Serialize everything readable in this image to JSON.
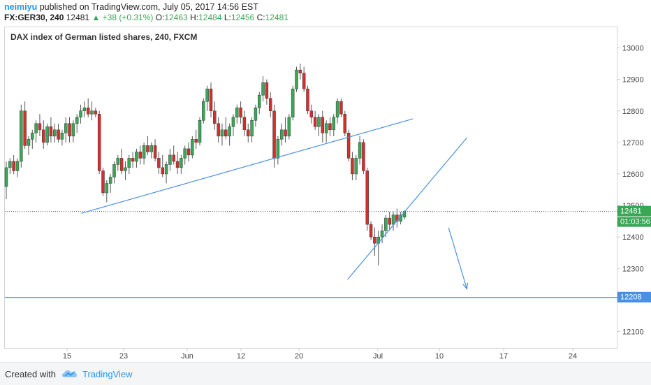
{
  "header": {
    "author": "neimiyu",
    "published_text": "published on TradingView.com, July 05, 2017 14:56 EST",
    "symbol": "FX:GER30, 240",
    "last": "12481",
    "change": "▲ +38 (+0.31%)",
    "o_label": "O:",
    "o_value": "12463",
    "h_label": "H:",
    "h_value": "12484",
    "l_label": "L:",
    "l_value": "12456",
    "c_label": "C:",
    "c_value": "12481"
  },
  "footer": {
    "created_with": "Created with",
    "brand": "TradingView"
  },
  "colors": {
    "up": "#3aa757",
    "down": "#d0312d",
    "wick": "#555555",
    "drawing": "#4a90e2",
    "price_line": "#555555",
    "accent": "#2196f3"
  },
  "chart_data": {
    "type": "candlestick",
    "title": "DAX index of German listed shares, 240, FXCM",
    "y_range": [
      12050,
      13050
    ],
    "y_ticks": [
      13000,
      12900,
      12800,
      12700,
      12600,
      12500,
      12400,
      12300,
      12100
    ],
    "x_ticks": [
      "15",
      "23",
      "Jun",
      "12",
      "20",
      "Jul",
      "10",
      "17",
      "24"
    ],
    "last_price": 12481,
    "last_price_label": "12481",
    "countdown_label": "01:03:56",
    "support_level": 12208,
    "support_label": "12208",
    "candles": [
      [
        12560,
        12640,
        12520,
        12620
      ],
      [
        12620,
        12650,
        12600,
        12640
      ],
      [
        12640,
        12660,
        12600,
        12610
      ],
      [
        12610,
        12650,
        12590,
        12640
      ],
      [
        12640,
        12820,
        12620,
        12800
      ],
      [
        12800,
        12830,
        12680,
        12690
      ],
      [
        12690,
        12720,
        12660,
        12710
      ],
      [
        12710,
        12740,
        12680,
        12730
      ],
      [
        12730,
        12770,
        12700,
        12760
      ],
      [
        12760,
        12790,
        12720,
        12740
      ],
      [
        12740,
        12770,
        12680,
        12700
      ],
      [
        12700,
        12760,
        12690,
        12750
      ],
      [
        12750,
        12780,
        12700,
        12720
      ],
      [
        12720,
        12760,
        12700,
        12740
      ],
      [
        12740,
        12760,
        12700,
        12710
      ],
      [
        12710,
        12740,
        12690,
        12730
      ],
      [
        12730,
        12780,
        12700,
        12760
      ],
      [
        12760,
        12780,
        12700,
        12720
      ],
      [
        12720,
        12770,
        12700,
        12760
      ],
      [
        12760,
        12790,
        12730,
        12780
      ],
      [
        12780,
        12820,
        12760,
        12800
      ],
      [
        12800,
        12830,
        12780,
        12810
      ],
      [
        12810,
        12840,
        12780,
        12790
      ],
      [
        12790,
        12830,
        12770,
        12800
      ],
      [
        12800,
        12810,
        12780,
        12790
      ],
      [
        12790,
        12800,
        12600,
        12610
      ],
      [
        12610,
        12620,
        12530,
        12540
      ],
      [
        12540,
        12580,
        12510,
        12570
      ],
      [
        12570,
        12600,
        12540,
        12590
      ],
      [
        12590,
        12640,
        12570,
        12630
      ],
      [
        12630,
        12660,
        12610,
        12650
      ],
      [
        12650,
        12680,
        12600,
        12610
      ],
      [
        12610,
        12640,
        12580,
        12620
      ],
      [
        12620,
        12660,
        12600,
        12650
      ],
      [
        12650,
        12670,
        12620,
        12640
      ],
      [
        12640,
        12680,
        12620,
        12670
      ],
      [
        12670,
        12690,
        12630,
        12650
      ],
      [
        12650,
        12700,
        12630,
        12690
      ],
      [
        12690,
        12720,
        12660,
        12670
      ],
      [
        12670,
        12700,
        12650,
        12690
      ],
      [
        12690,
        12710,
        12640,
        12650
      ],
      [
        12650,
        12670,
        12600,
        12620
      ],
      [
        12620,
        12660,
        12590,
        12600
      ],
      [
        12600,
        12640,
        12570,
        12630
      ],
      [
        12630,
        12680,
        12610,
        12660
      ],
      [
        12660,
        12690,
        12630,
        12640
      ],
      [
        12640,
        12670,
        12600,
        12620
      ],
      [
        12620,
        12660,
        12600,
        12650
      ],
      [
        12650,
        12690,
        12630,
        12680
      ],
      [
        12680,
        12700,
        12640,
        12660
      ],
      [
        12660,
        12720,
        12650,
        12710
      ],
      [
        12710,
        12740,
        12680,
        12700
      ],
      [
        12700,
        12780,
        12690,
        12770
      ],
      [
        12770,
        12840,
        12760,
        12830
      ],
      [
        12830,
        12880,
        12800,
        12870
      ],
      [
        12870,
        12890,
        12780,
        12800
      ],
      [
        12800,
        12830,
        12740,
        12760
      ],
      [
        12760,
        12780,
        12700,
        12720
      ],
      [
        12720,
        12760,
        12690,
        12740
      ],
      [
        12740,
        12780,
        12710,
        12720
      ],
      [
        12720,
        12760,
        12690,
        12750
      ],
      [
        12750,
        12790,
        12720,
        12780
      ],
      [
        12780,
        12820,
        12760,
        12810
      ],
      [
        12810,
        12830,
        12760,
        12780
      ],
      [
        12780,
        12800,
        12720,
        12740
      ],
      [
        12740,
        12760,
        12700,
        12720
      ],
      [
        12720,
        12780,
        12700,
        12770
      ],
      [
        12770,
        12820,
        12750,
        12810
      ],
      [
        12810,
        12860,
        12790,
        12850
      ],
      [
        12850,
        12910,
        12830,
        12890
      ],
      [
        12890,
        12900,
        12820,
        12840
      ],
      [
        12840,
        12860,
        12780,
        12800
      ],
      [
        12800,
        12820,
        12620,
        12650
      ],
      [
        12650,
        12720,
        12630,
        12710
      ],
      [
        12710,
        12760,
        12690,
        12740
      ],
      [
        12740,
        12780,
        12700,
        12720
      ],
      [
        12720,
        12790,
        12710,
        12780
      ],
      [
        12780,
        12880,
        12770,
        12870
      ],
      [
        12870,
        12940,
        12860,
        12930
      ],
      [
        12930,
        12950,
        12900,
        12920
      ],
      [
        12920,
        12940,
        12860,
        12870
      ],
      [
        12870,
        12880,
        12790,
        12800
      ],
      [
        12800,
        12820,
        12760,
        12780
      ],
      [
        12780,
        12800,
        12740,
        12750
      ],
      [
        12750,
        12790,
        12720,
        12780
      ],
      [
        12780,
        12800,
        12700,
        12730
      ],
      [
        12730,
        12770,
        12700,
        12760
      ],
      [
        12760,
        12780,
        12720,
        12740
      ],
      [
        12740,
        12790,
        12720,
        12780
      ],
      [
        12780,
        12840,
        12760,
        12830
      ],
      [
        12830,
        12840,
        12780,
        12790
      ],
      [
        12790,
        12800,
        12720,
        12730
      ],
      [
        12730,
        12740,
        12640,
        12650
      ],
      [
        12650,
        12670,
        12580,
        12600
      ],
      [
        12600,
        12660,
        12580,
        12650
      ],
      [
        12650,
        12720,
        12630,
        12700
      ],
      [
        12700,
        12710,
        12600,
        12610
      ],
      [
        12610,
        12620,
        12420,
        12440
      ],
      [
        12440,
        12450,
        12390,
        12400
      ],
      [
        12400,
        12430,
        12340,
        12380
      ],
      [
        12380,
        12420,
        12310,
        12400
      ],
      [
        12400,
        12440,
        12380,
        12420
      ],
      [
        12420,
        12470,
        12400,
        12460
      ],
      [
        12460,
        12480,
        12420,
        12440
      ],
      [
        12440,
        12480,
        12420,
        12470
      ],
      [
        12470,
        12490,
        12430,
        12450
      ],
      [
        12450,
        12480,
        12440,
        12470
      ],
      [
        12463,
        12484,
        12456,
        12481
      ]
    ],
    "drawings": [
      {
        "type": "trendline",
        "from": [
          "May 17",
          12475
        ],
        "to": [
          "Jul 07",
          12775
        ]
      },
      {
        "type": "trendline",
        "from": [
          "Jun 28",
          12265
        ],
        "to": [
          "Jul 13",
          12715
        ]
      },
      {
        "type": "arrow",
        "from": [
          "Jul 11",
          12430
        ],
        "to": [
          "Jul 13",
          12235
        ]
      }
    ]
  }
}
